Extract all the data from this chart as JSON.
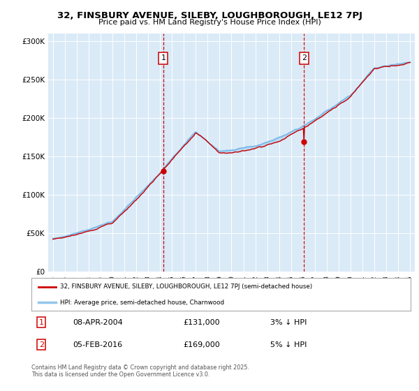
{
  "title_line1": "32, FINSBURY AVENUE, SILEBY, LOUGHBOROUGH, LE12 7PJ",
  "title_line2": "Price paid vs. HM Land Registry's House Price Index (HPI)",
  "yticks": [
    0,
    50000,
    100000,
    150000,
    200000,
    250000,
    300000
  ],
  "ytick_labels": [
    "£0",
    "£50K",
    "£100K",
    "£150K",
    "£200K",
    "£250K",
    "£300K"
  ],
  "xlim_start": 1994.6,
  "xlim_end": 2025.4,
  "ylim_min": 0,
  "ylim_max": 310000,
  "bg_color": "#daeaf7",
  "line_color_hpi": "#7ab8e8",
  "line_color_price": "#cc0000",
  "vline1_x": 2004.27,
  "vline2_x": 2016.09,
  "vline_color": "#cc0000",
  "sale1_y": 131000,
  "sale2_y": 169000,
  "sale1_label": "1",
  "sale1_date": "08-APR-2004",
  "sale1_price": "£131,000",
  "sale1_pct": "3% ↓ HPI",
  "sale2_label": "2",
  "sale2_date": "05-FEB-2016",
  "sale2_price": "£169,000",
  "sale2_pct": "5% ↓ HPI",
  "legend_line1": "32, FINSBURY AVENUE, SILEBY, LOUGHBOROUGH, LE12 7PJ (semi-detached house)",
  "legend_line2": "HPI: Average price, semi-detached house, Charnwood",
  "footer": "Contains HM Land Registry data © Crown copyright and database right 2025.\nThis data is licensed under the Open Government Licence v3.0.",
  "xtick_years": [
    1995,
    1996,
    1997,
    1998,
    1999,
    2000,
    2001,
    2002,
    2003,
    2004,
    2005,
    2006,
    2007,
    2008,
    2009,
    2010,
    2011,
    2012,
    2013,
    2014,
    2015,
    2016,
    2017,
    2018,
    2019,
    2020,
    2021,
    2022,
    2023,
    2024,
    2025
  ]
}
